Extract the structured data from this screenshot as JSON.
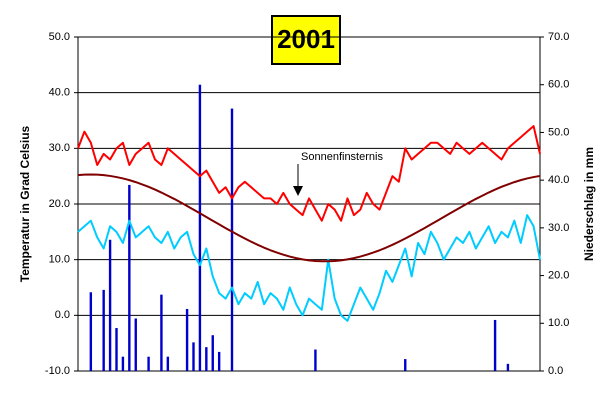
{
  "chart_data": {
    "type": "line",
    "title": "2001",
    "ylabel": "Temperatur in Grad Celsius",
    "y2label": "Niederschlag in mm",
    "annotation": "Sonnenfinsternis",
    "ylim": [
      -10,
      50
    ],
    "yticks": [
      {
        "value": -10,
        "label": "-10.0"
      },
      {
        "value": 0,
        "label": "0.0"
      },
      {
        "value": 10,
        "label": "10.0"
      },
      {
        "value": 20,
        "label": "20.0"
      },
      {
        "value": 30,
        "label": "30.0"
      },
      {
        "value": 40,
        "label": "40.0"
      },
      {
        "value": 50,
        "label": "50.0"
      }
    ],
    "y2lim": [
      0,
      70
    ],
    "y2ticks": [
      {
        "value": 0,
        "label": "0.0"
      },
      {
        "value": 10,
        "label": "10.0"
      },
      {
        "value": 20,
        "label": "20.0"
      },
      {
        "value": 30,
        "label": "30.0"
      },
      {
        "value": 40,
        "label": "40.0"
      },
      {
        "value": 50,
        "label": "50.0"
      },
      {
        "value": 60,
        "label": "60.0"
      },
      {
        "value": 70,
        "label": "70.0"
      }
    ],
    "grid": true,
    "series": [
      {
        "type": "bar",
        "axis": "y2",
        "color": "#0000cc",
        "values": [
          0,
          0,
          16.5,
          0,
          17,
          27.5,
          9,
          3,
          39,
          11,
          0,
          3,
          0,
          16,
          3,
          0,
          0,
          13,
          6,
          60,
          5,
          7.5,
          4,
          0,
          55,
          0,
          0,
          0,
          0,
          0,
          0,
          0,
          0,
          0,
          0,
          0,
          0,
          4.5,
          0,
          0,
          0,
          0,
          0,
          0,
          0,
          0,
          0,
          0,
          0,
          0,
          0,
          2.5,
          0,
          0,
          0,
          0,
          0,
          0,
          0,
          0,
          0,
          0,
          0,
          0,
          0,
          10.7,
          0,
          1.5,
          0,
          0,
          0,
          0,
          0
        ]
      },
      {
        "type": "line",
        "color": "#ff0000",
        "values": [
          30,
          33,
          31,
          27,
          29,
          28,
          30,
          31,
          27,
          29,
          30,
          31,
          28,
          27,
          30,
          29,
          28,
          27,
          26,
          25,
          26,
          24,
          22,
          23,
          21,
          23,
          24,
          23,
          22,
          21,
          21,
          20,
          22,
          20,
          19,
          18,
          21,
          19,
          17,
          20,
          19,
          17,
          21,
          18,
          19,
          22,
          20,
          19,
          22,
          25,
          24,
          30,
          28,
          29,
          30,
          31,
          31,
          30,
          29,
          31,
          30,
          29,
          30,
          31,
          30,
          29,
          28,
          30,
          31,
          32,
          33,
          34,
          29
        ]
      },
      {
        "type": "line",
        "color": "#00ccff",
        "values": [
          15,
          16,
          17,
          14,
          12,
          16,
          15,
          13,
          17,
          14,
          15,
          16,
          14,
          13,
          15,
          12,
          14,
          15,
          11,
          9,
          12,
          7,
          4,
          3,
          5,
          2,
          4,
          3,
          6,
          2,
          4,
          3,
          1,
          5,
          2,
          0,
          3,
          2,
          1,
          10,
          3,
          0,
          -1,
          2,
          5,
          3,
          1,
          4,
          8,
          6,
          9,
          12,
          7,
          13,
          11,
          15,
          13,
          10,
          12,
          14,
          13,
          15,
          12,
          14,
          16,
          13,
          15,
          14,
          17,
          13,
          18,
          16,
          10
        ]
      },
      {
        "type": "line",
        "color": "#800000",
        "values": [
          25.18,
          25.27,
          25.3,
          25.27,
          25.18,
          25.04,
          24.84,
          24.59,
          24.29,
          23.93,
          23.52,
          23.08,
          22.59,
          22.06,
          21.49,
          20.91,
          20.29,
          19.65,
          19.0,
          18.34,
          17.66,
          16.99,
          16.33,
          15.67,
          15.03,
          14.4,
          13.8,
          13.22,
          12.67,
          12.16,
          11.69,
          11.27,
          10.89,
          10.56,
          10.28,
          10.05,
          9.88,
          9.76,
          9.71,
          9.71,
          9.76,
          9.88,
          10.05,
          10.28,
          10.56,
          10.89,
          11.27,
          11.69,
          12.16,
          12.67,
          13.22,
          13.8,
          14.4,
          15.03,
          15.67,
          16.33,
          16.99,
          17.66,
          18.34,
          19.0,
          19.65,
          20.29,
          20.91,
          21.49,
          22.06,
          22.59,
          23.08,
          23.52,
          23.93,
          24.29,
          24.59,
          24.84,
          25.04
        ]
      }
    ]
  }
}
